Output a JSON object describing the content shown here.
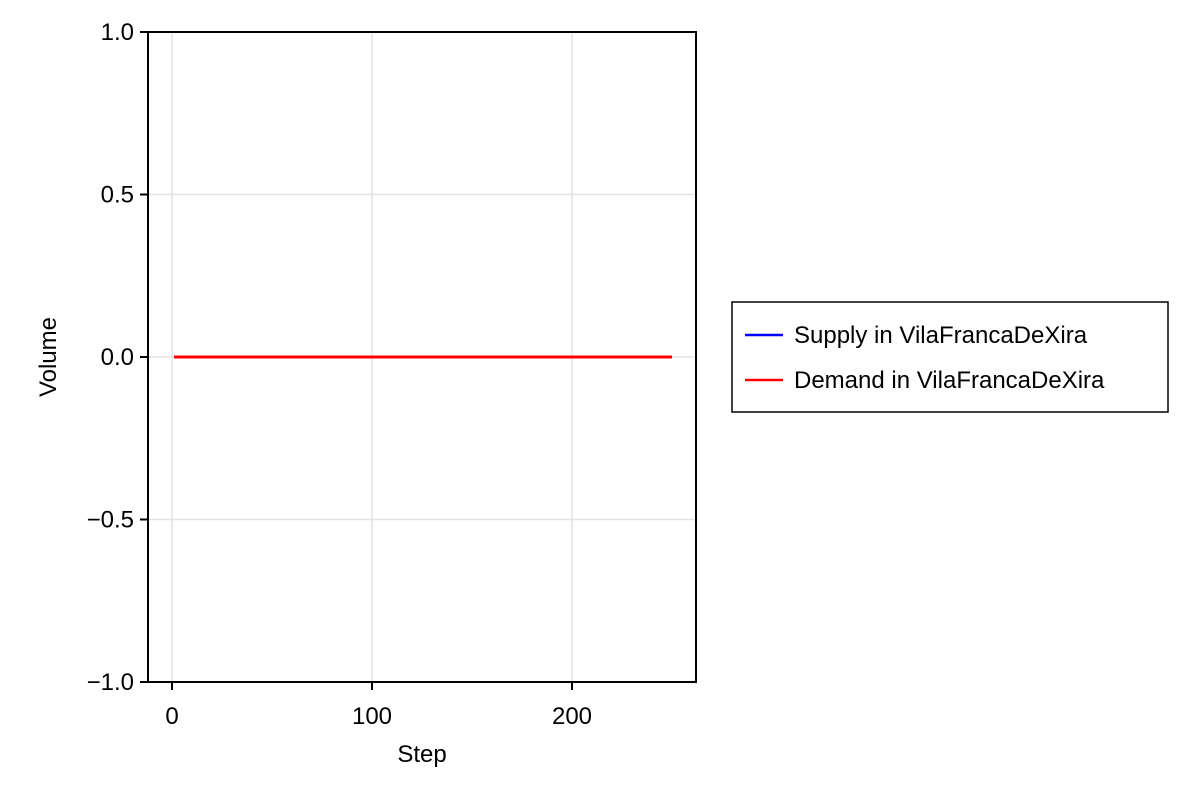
{
  "chart_data": {
    "type": "line",
    "title": "",
    "xlabel": "Step",
    "ylabel": "Volume",
    "xlim": [
      -12,
      262
    ],
    "ylim": [
      -1.0,
      1.0
    ],
    "xticks": [
      0,
      100,
      200
    ],
    "xtick_labels": [
      "0",
      "100",
      "200"
    ],
    "yticks": [
      -1.0,
      -0.5,
      0.0,
      0.5,
      1.0
    ],
    "ytick_labels": [
      "−1.0",
      "−0.5",
      "0.0",
      "0.5",
      "1.0"
    ],
    "grid": true,
    "legend_position": "right",
    "series": [
      {
        "name": "Supply in VilaFrancaDeXira",
        "color": "#0000ff",
        "x": [
          1,
          250
        ],
        "y": [
          0,
          0
        ]
      },
      {
        "name": "Demand in VilaFrancaDeXira",
        "color": "#ff0000",
        "x": [
          1,
          250
        ],
        "y": [
          0,
          0
        ]
      }
    ]
  }
}
